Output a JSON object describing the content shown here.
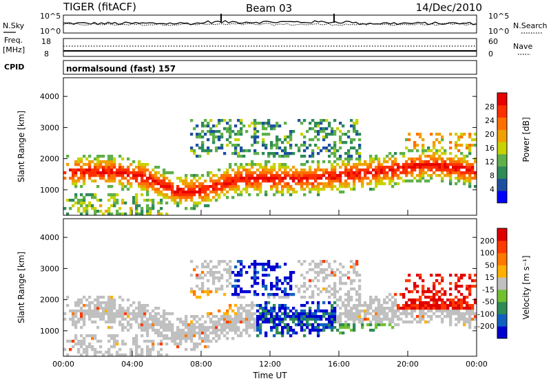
{
  "header": {
    "site": "TIGER (fitACF)",
    "beam": "Beam 03",
    "date": "14/Dec/2010"
  },
  "strip_labels": {
    "nsky": "N.Sky",
    "nsearch": "N.Search",
    "freq_line1": "Freq.",
    "freq_line2": "[MHz]",
    "nave": "Nave",
    "cpid": "CPID",
    "cpid_value": "normalsound (fast) 157"
  },
  "strip_ticks": {
    "noise_left_top": "10^5",
    "noise_left_bottom": "10^0",
    "noise_right_top": "10^5",
    "noise_right_bottom": "10^0",
    "freq_top": "18",
    "freq_bottom": "8",
    "nave_top": "60",
    "nave_bottom": "0"
  },
  "colors": {
    "power_scale": [
      "#0000ff",
      "#1e50a0",
      "#2e8b57",
      "#5fb04a",
      "#c8d200",
      "#f0a000",
      "#ff7000",
      "#ff3000",
      "#e80000"
    ],
    "velocity_scale": [
      "#0000d0",
      "#1060c0",
      "#2e8b57",
      "#70c030",
      "#c0c0c0",
      "#ffb000",
      "#ff7800",
      "#ff3a00",
      "#e00000"
    ]
  },
  "chart_data": [
    {
      "type": "heatmap",
      "panel": "power",
      "xlabel": "",
      "ylabel": "Slant Range [km]",
      "y_ticks": [
        "1000",
        "2000",
        "3000",
        "4000"
      ],
      "ylim": [
        180,
        4600
      ],
      "colorbar_label": "Power [dB]",
      "colorbar_ticks": [
        "4",
        "8",
        "12",
        "16",
        "20",
        "24",
        "28"
      ],
      "colorbar_range": [
        0,
        32
      ]
    },
    {
      "type": "heatmap",
      "panel": "velocity",
      "xlabel": "Time UT",
      "ylabel": "Slant Range [km]",
      "x_ticks": [
        "00:00",
        "04:00",
        "08:00",
        "12:00",
        "16:00",
        "20:00",
        "00:00"
      ],
      "y_ticks": [
        "1000",
        "2000",
        "3000",
        "4000"
      ],
      "ylim": [
        180,
        4600
      ],
      "colorbar_label": "Velocity [m s⁻¹]",
      "colorbar_ticks": [
        "200",
        "100",
        "50",
        "15",
        "-15",
        "-50",
        "-100",
        "-200"
      ]
    }
  ]
}
